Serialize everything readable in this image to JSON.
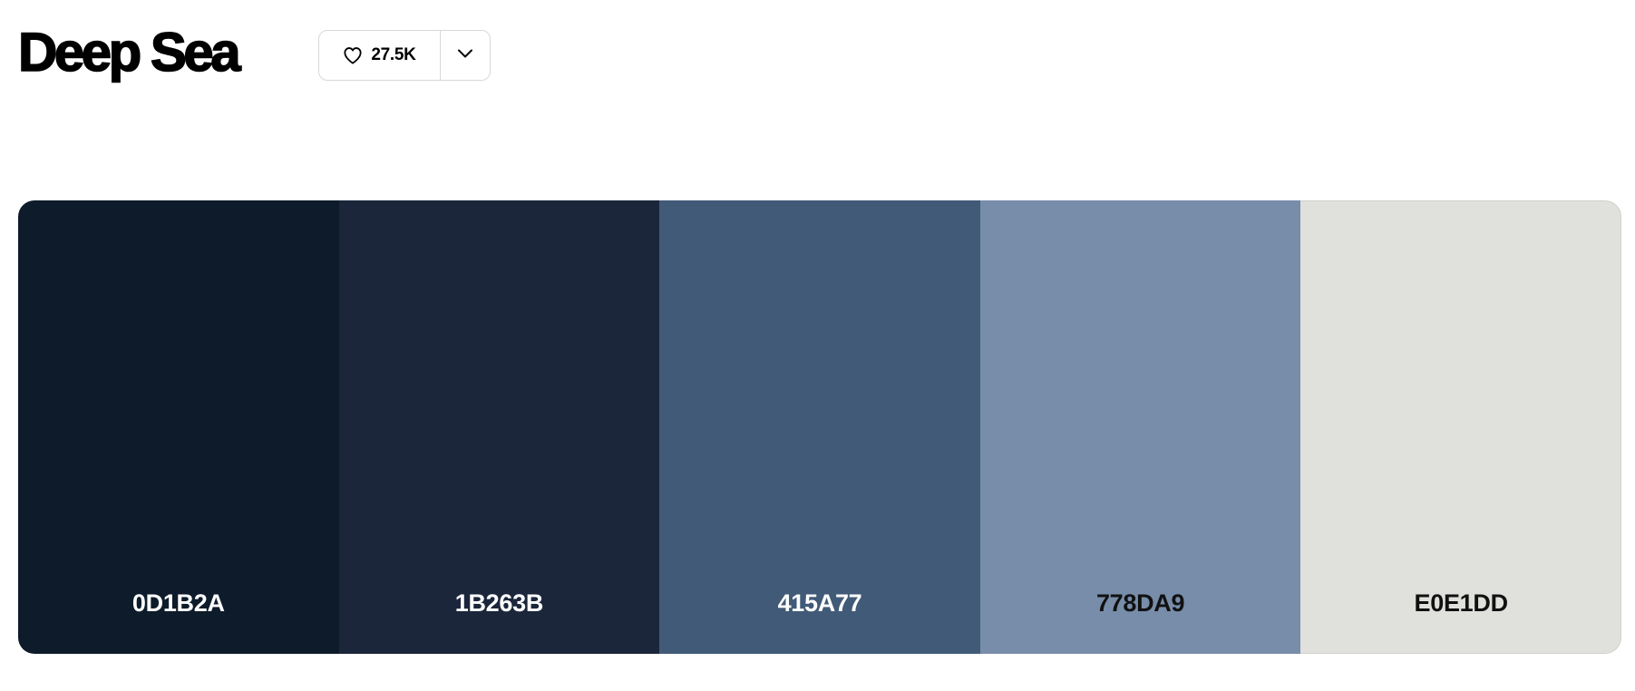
{
  "palette": {
    "title": "Deep Sea",
    "likes": "27.5K",
    "swatches": [
      {
        "hex": "0D1B2A",
        "color": "#0d1b2a",
        "text_color": "#ffffff"
      },
      {
        "hex": "1B263B",
        "color": "#1b263b",
        "text_color": "#ffffff"
      },
      {
        "hex": "415A77",
        "color": "#415a77",
        "text_color": "#ffffff"
      },
      {
        "hex": "778DA9",
        "color": "#778da9",
        "text_color": "#111111"
      },
      {
        "hex": "E0E1DD",
        "color": "#e0e1dd",
        "text_color": "#111111"
      }
    ]
  },
  "icons": {
    "like": "heart-icon",
    "more": "chevron-down-icon"
  }
}
